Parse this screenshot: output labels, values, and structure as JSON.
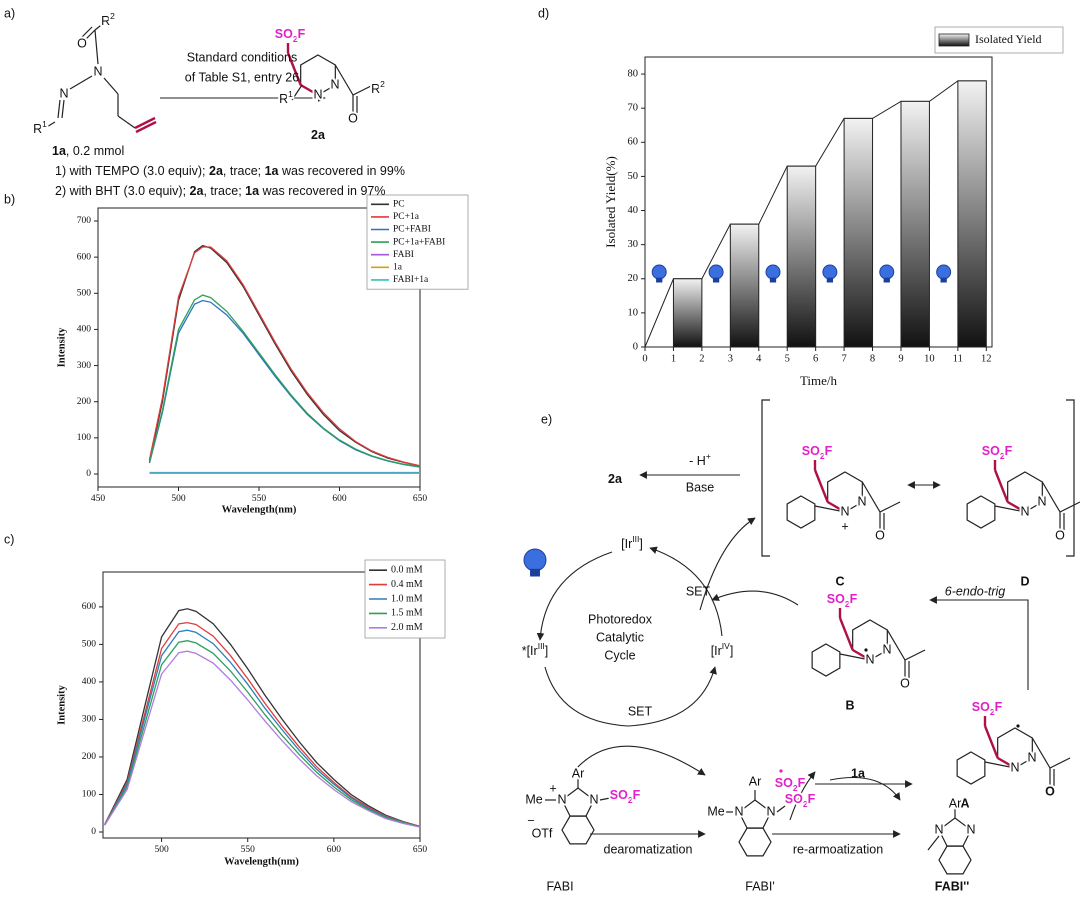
{
  "chart_data": [
    {
      "type": "line",
      "xlabel": "Wavelength(nm)",
      "ylabel": "Intensity",
      "xlim": [
        450,
        650
      ],
      "ylim": [
        -36,
        736
      ],
      "xticks": [
        450,
        500,
        550,
        600,
        650
      ],
      "yticks": [
        0,
        100,
        200,
        300,
        400,
        500,
        600,
        700
      ],
      "legend": "upper right",
      "x": [
        482,
        490,
        500,
        510,
        515,
        520,
        530,
        540,
        550,
        560,
        570,
        580,
        590,
        600,
        610,
        620,
        630,
        640,
        650
      ],
      "series": [
        {
          "name": "PC",
          "color": "#333333",
          "values": [
            35,
            200,
            480,
            615,
            632,
            625,
            585,
            520,
            440,
            360,
            285,
            220,
            165,
            120,
            88,
            62,
            44,
            32,
            22
          ]
        },
        {
          "name": "PC+1a",
          "color": "#e03c3c",
          "values": [
            40,
            210,
            490,
            612,
            628,
            628,
            590,
            525,
            445,
            365,
            290,
            225,
            170,
            125,
            90,
            64,
            46,
            33,
            23
          ]
        },
        {
          "name": "PC+FABI",
          "color": "#2f6fc4",
          "values": [
            30,
            170,
            390,
            470,
            480,
            475,
            440,
            390,
            330,
            270,
            215,
            165,
            125,
            92,
            67,
            49,
            36,
            26,
            19
          ]
        },
        {
          "name": "PC+1a+FABI",
          "color": "#2ca05a",
          "values": [
            32,
            175,
            400,
            482,
            495,
            488,
            450,
            395,
            335,
            275,
            218,
            168,
            127,
            94,
            69,
            50,
            37,
            27,
            20
          ]
        },
        {
          "name": "FABI",
          "color": "#a855e0",
          "values": [
            4,
            4,
            4,
            4,
            4,
            4,
            4,
            4,
            4,
            4,
            4,
            4,
            4,
            4,
            4,
            4,
            4,
            4,
            4
          ]
        },
        {
          "name": "1a",
          "color": "#d4a017",
          "values": [
            2,
            2,
            2,
            2,
            2,
            2,
            2,
            2,
            2,
            2,
            2,
            2,
            2,
            2,
            2,
            2,
            2,
            2,
            2
          ]
        },
        {
          "name": "FABI+1a",
          "color": "#2ec4b6",
          "values": [
            3,
            3,
            3,
            3,
            3,
            3,
            3,
            3,
            3,
            3,
            3,
            3,
            3,
            3,
            3,
            3,
            3,
            3,
            3
          ]
        }
      ]
    },
    {
      "type": "line",
      "xlabel": "Wavelength(nm)",
      "ylabel": "Intensity",
      "xlim": [
        466,
        650
      ],
      "ylim": [
        -16,
        693
      ],
      "xticks": [
        500,
        550,
        600,
        650
      ],
      "yticks": [
        0,
        100,
        200,
        300,
        400,
        500,
        600
      ],
      "legend": "upper right",
      "x": [
        467,
        480,
        490,
        500,
        510,
        515,
        520,
        530,
        540,
        550,
        560,
        570,
        580,
        590,
        600,
        610,
        620,
        630,
        640,
        650
      ],
      "series": [
        {
          "name": "0.0 mM",
          "color": "#333333",
          "values": [
            20,
            140,
            330,
            520,
            590,
            595,
            588,
            555,
            500,
            435,
            365,
            300,
            240,
            185,
            140,
            100,
            70,
            45,
            28,
            15
          ]
        },
        {
          "name": "0.4 mM",
          "color": "#e03c3c",
          "values": [
            20,
            132,
            310,
            489,
            555,
            558,
            553,
            522,
            470,
            409,
            343,
            282,
            226,
            174,
            132,
            94,
            66,
            43,
            27,
            15
          ]
        },
        {
          "name": "1.0 mM",
          "color": "#2f7fb8",
          "values": [
            19,
            127,
            299,
            470,
            534,
            538,
            532,
            502,
            452,
            394,
            330,
            272,
            217,
            167,
            127,
            91,
            63,
            41,
            26,
            14
          ]
        },
        {
          "name": "1.5 mM",
          "color": "#2ca05a",
          "values": [
            18,
            120,
            283,
            446,
            506,
            510,
            504,
            476,
            429,
            373,
            313,
            257,
            206,
            159,
            120,
            86,
            60,
            39,
            25,
            14
          ]
        },
        {
          "name": "2.0 mM",
          "color": "#b07ce0",
          "values": [
            18,
            113,
            267,
            421,
            478,
            482,
            476,
            450,
            405,
            352,
            296,
            243,
            194,
            150,
            113,
            81,
            57,
            36,
            23,
            13
          ]
        }
      ]
    },
    {
      "type": "bar",
      "xlabel": "Time/h",
      "ylabel": "Isolated Yield(%)",
      "xlim": [
        0,
        12.2
      ],
      "ylim": [
        0,
        85
      ],
      "xticks": [
        0,
        1,
        2,
        3,
        4,
        5,
        6,
        7,
        8,
        9,
        10,
        11,
        12
      ],
      "yticks": [
        0,
        10,
        20,
        30,
        40,
        50,
        60,
        70,
        80
      ],
      "legend": "upper right",
      "series": [
        {
          "name": "Isolated Yield",
          "gradient": [
            "#f2f2f2",
            "#111111"
          ],
          "x": [
            1.5,
            3.5,
            5.5,
            7.5,
            9.5,
            11.5
          ],
          "values": [
            20,
            36,
            53,
            67,
            72,
            78
          ]
        }
      ]
    }
  ],
  "scheme": {
    "labels": [
      "a)",
      [
        {
          "text": "R"
        },
        {
          "text": "2",
          "sup": true
        }
      ],
      "O",
      "N",
      "N",
      [
        {
          "text": "R"
        },
        {
          "text": "1",
          "sup": true
        }
      ],
      [
        {
          "text": "1a",
          "bold": true
        },
        {
          "text": ", 0.2 mmol"
        }
      ],
      "Standard conditions",
      "of Table S1, entry 26",
      [
        {
          "text": "SO"
        },
        {
          "text": "2",
          "sub": true
        },
        {
          "text": "F"
        }
      ],
      [
        {
          "text": "R"
        },
        {
          "text": "1",
          "sup": true
        }
      ],
      "N",
      "N",
      "O",
      [
        {
          "text": "R"
        },
        {
          "text": "2",
          "sup": true
        }
      ],
      [
        {
          "text": "2a",
          "bold": true
        }
      ],
      [
        {
          "text": "1) with TEMPO (3.0 equiv); "
        },
        {
          "text": "2a",
          "bold": true
        },
        {
          "text": ", trace; "
        },
        {
          "text": "1a",
          "bold": true
        },
        {
          "text": " was recovered in 99%"
        }
      ],
      [
        {
          "text": "2) with BHT (3.0 equiv); "
        },
        {
          "text": "2a",
          "bold": true
        },
        {
          "text": ", trace; "
        },
        {
          "text": "1a",
          "bold": true
        },
        {
          "text": " was recovered in 97%"
        }
      ],
      "b)",
      "c)",
      "d)",
      "e)",
      [
        {
          "text": "2a",
          "bold": true
        }
      ],
      [
        {
          "text": "- H"
        },
        {
          "text": "+",
          "sup": true
        }
      ],
      "Base",
      [
        {
          "text": "SO"
        },
        {
          "text": "2",
          "sub": true
        },
        {
          "text": "F"
        }
      ],
      "N",
      "+",
      "N",
      "O",
      [
        {
          "text": "SO"
        },
        {
          "text": "2",
          "sub": true
        },
        {
          "text": "F"
        }
      ],
      "N",
      "N",
      "O",
      "C",
      "D",
      [
        {
          "text": "[Ir"
        },
        {
          "text": "III",
          "sup": true
        },
        {
          "text": "]"
        }
      ],
      [
        {
          "text": "*[Ir"
        },
        {
          "text": "III",
          "sup": true
        },
        {
          "text": "]"
        }
      ],
      [
        {
          "text": "[Ir"
        },
        {
          "text": "IV",
          "sup": true
        },
        {
          "text": "]"
        }
      ],
      "Photoredox",
      "Catalytic",
      "Cycle",
      "SET",
      "SET",
      "6-endo-trig",
      [
        {
          "text": "SO"
        },
        {
          "text": "2",
          "sub": true
        },
        {
          "text": "F"
        }
      ],
      "N",
      "N",
      "O",
      "B",
      [
        {
          "text": "SO"
        },
        {
          "text": "2",
          "sub": true
        },
        {
          "text": "F"
        }
      ],
      "1a",
      [
        {
          "text": "SO"
        },
        {
          "text": "2",
          "sub": true
        },
        {
          "text": "F"
        }
      ],
      "N",
      "N",
      "O",
      "A",
      "Ar",
      "Me",
      "N",
      "+",
      "N",
      [
        {
          "text": "SO"
        },
        {
          "text": "2",
          "sub": true
        },
        {
          "text": "F"
        }
      ],
      "−",
      "OTf",
      "FABI",
      "dearomatization",
      "re-armoatization",
      "Ar",
      "Me",
      "N",
      "N",
      [
        {
          "text": "SO"
        },
        {
          "text": "2",
          "sub": true
        },
        {
          "text": "F"
        }
      ],
      "FABI'",
      "Ar",
      "N",
      "N",
      "FABI''"
    ]
  }
}
